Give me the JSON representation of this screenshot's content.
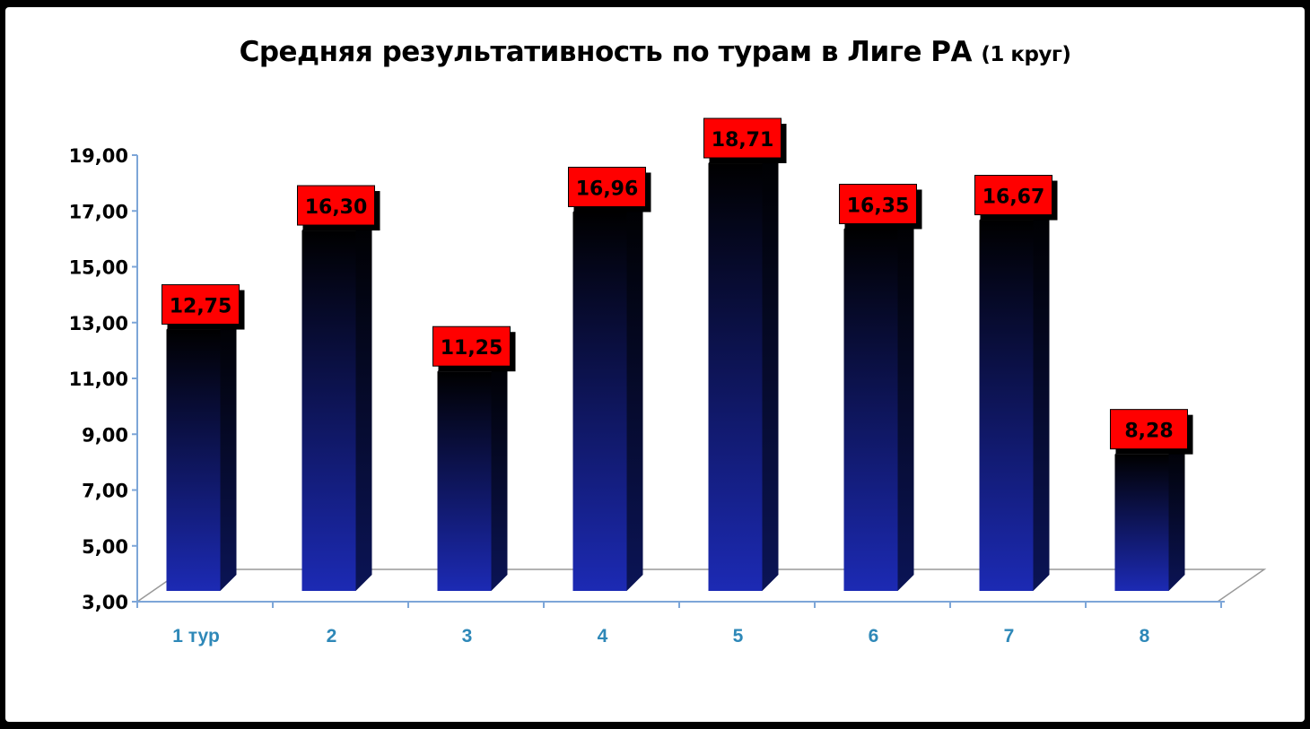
{
  "chart_data": {
    "type": "bar",
    "title": "Средняя результативность по турам в Лиге РА",
    "subtitle": "(1 круг)",
    "categories": [
      "1 тур",
      "2",
      "3",
      "4",
      "5",
      "6",
      "7",
      "8"
    ],
    "values": [
      12.75,
      16.3,
      11.25,
      16.96,
      18.71,
      16.35,
      16.67,
      8.28
    ],
    "value_labels": [
      "12,75",
      "16,30",
      "11,25",
      "16,96",
      "18,71",
      "16,35",
      "16,67",
      "8,28"
    ],
    "y_ticks": [
      3,
      5,
      7,
      9,
      11,
      13,
      15,
      17,
      19
    ],
    "y_tick_labels": [
      "3,00",
      "5,00",
      "7,00",
      "9,00",
      "11,00",
      "13,00",
      "15,00",
      "17,00",
      "19,00"
    ],
    "ylim": [
      3,
      19
    ],
    "xlabel": "",
    "ylabel": "",
    "grid": false,
    "legend": "none",
    "colors": {
      "bar_top": "#000000",
      "bar_bottom": "#1c2ab4",
      "label_fill": "#ff0000",
      "axis": "#7da6d8",
      "x_tick_text": "#2e88b8"
    }
  }
}
